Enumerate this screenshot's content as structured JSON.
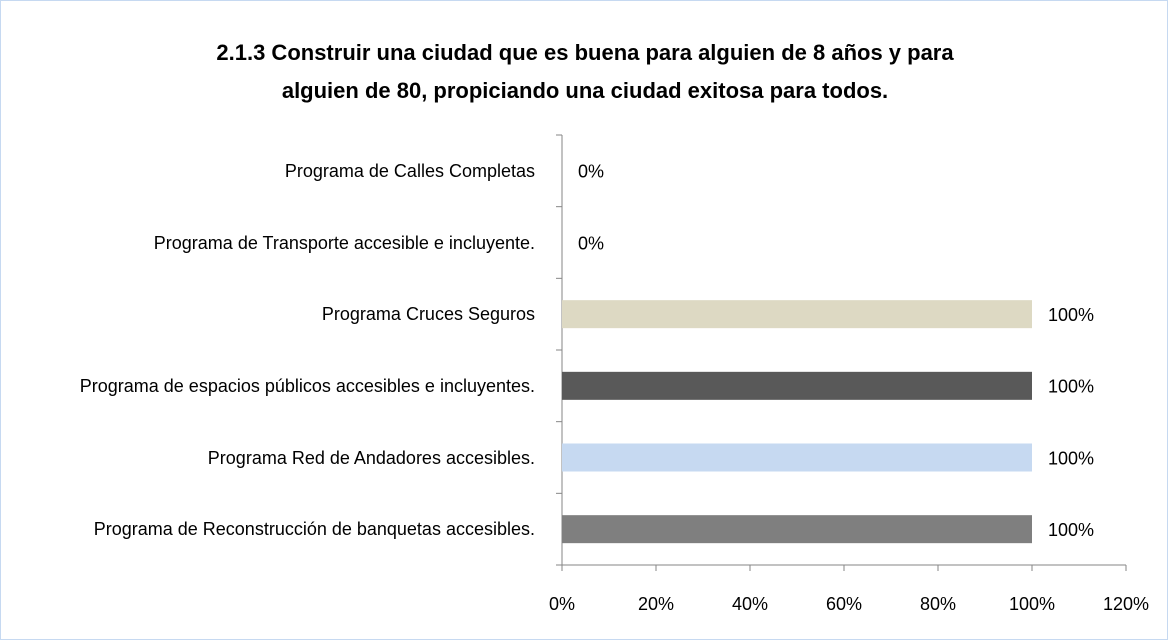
{
  "chart_data": {
    "type": "bar",
    "orientation": "horizontal",
    "title": "2.1.3 Construir una ciudad que es buena para alguien de 8 años y para alguien de 80, propiciando una ciudad exitosa para todos.",
    "categories": [
      "Programa de Calles Completas",
      "Programa de Transporte accesible e incluyente.",
      "Programa Cruces Seguros",
      "Programa de espacios públicos accesibles e incluyentes.",
      "Programa Red de Andadores accesibles.",
      "Programa de Reconstrucción de banquetas accesibles."
    ],
    "values": [
      0,
      0,
      100,
      100,
      100,
      100
    ],
    "value_labels": [
      "0%",
      "0%",
      "100%",
      "100%",
      "100%",
      "100%"
    ],
    "colors": [
      null,
      null,
      "#ddd9c3",
      "#595959",
      "#c6d9f1",
      "#7f7f7f"
    ],
    "xlim": [
      0,
      120
    ],
    "xticks": [
      {
        "value": 0,
        "label": "0%"
      },
      {
        "value": 20,
        "label": "20%"
      },
      {
        "value": 40,
        "label": "40%"
      },
      {
        "value": 60,
        "label": "60%"
      },
      {
        "value": 80,
        "label": "80%"
      },
      {
        "value": 100,
        "label": "100%"
      },
      {
        "value": 120,
        "label": "120%"
      }
    ]
  }
}
